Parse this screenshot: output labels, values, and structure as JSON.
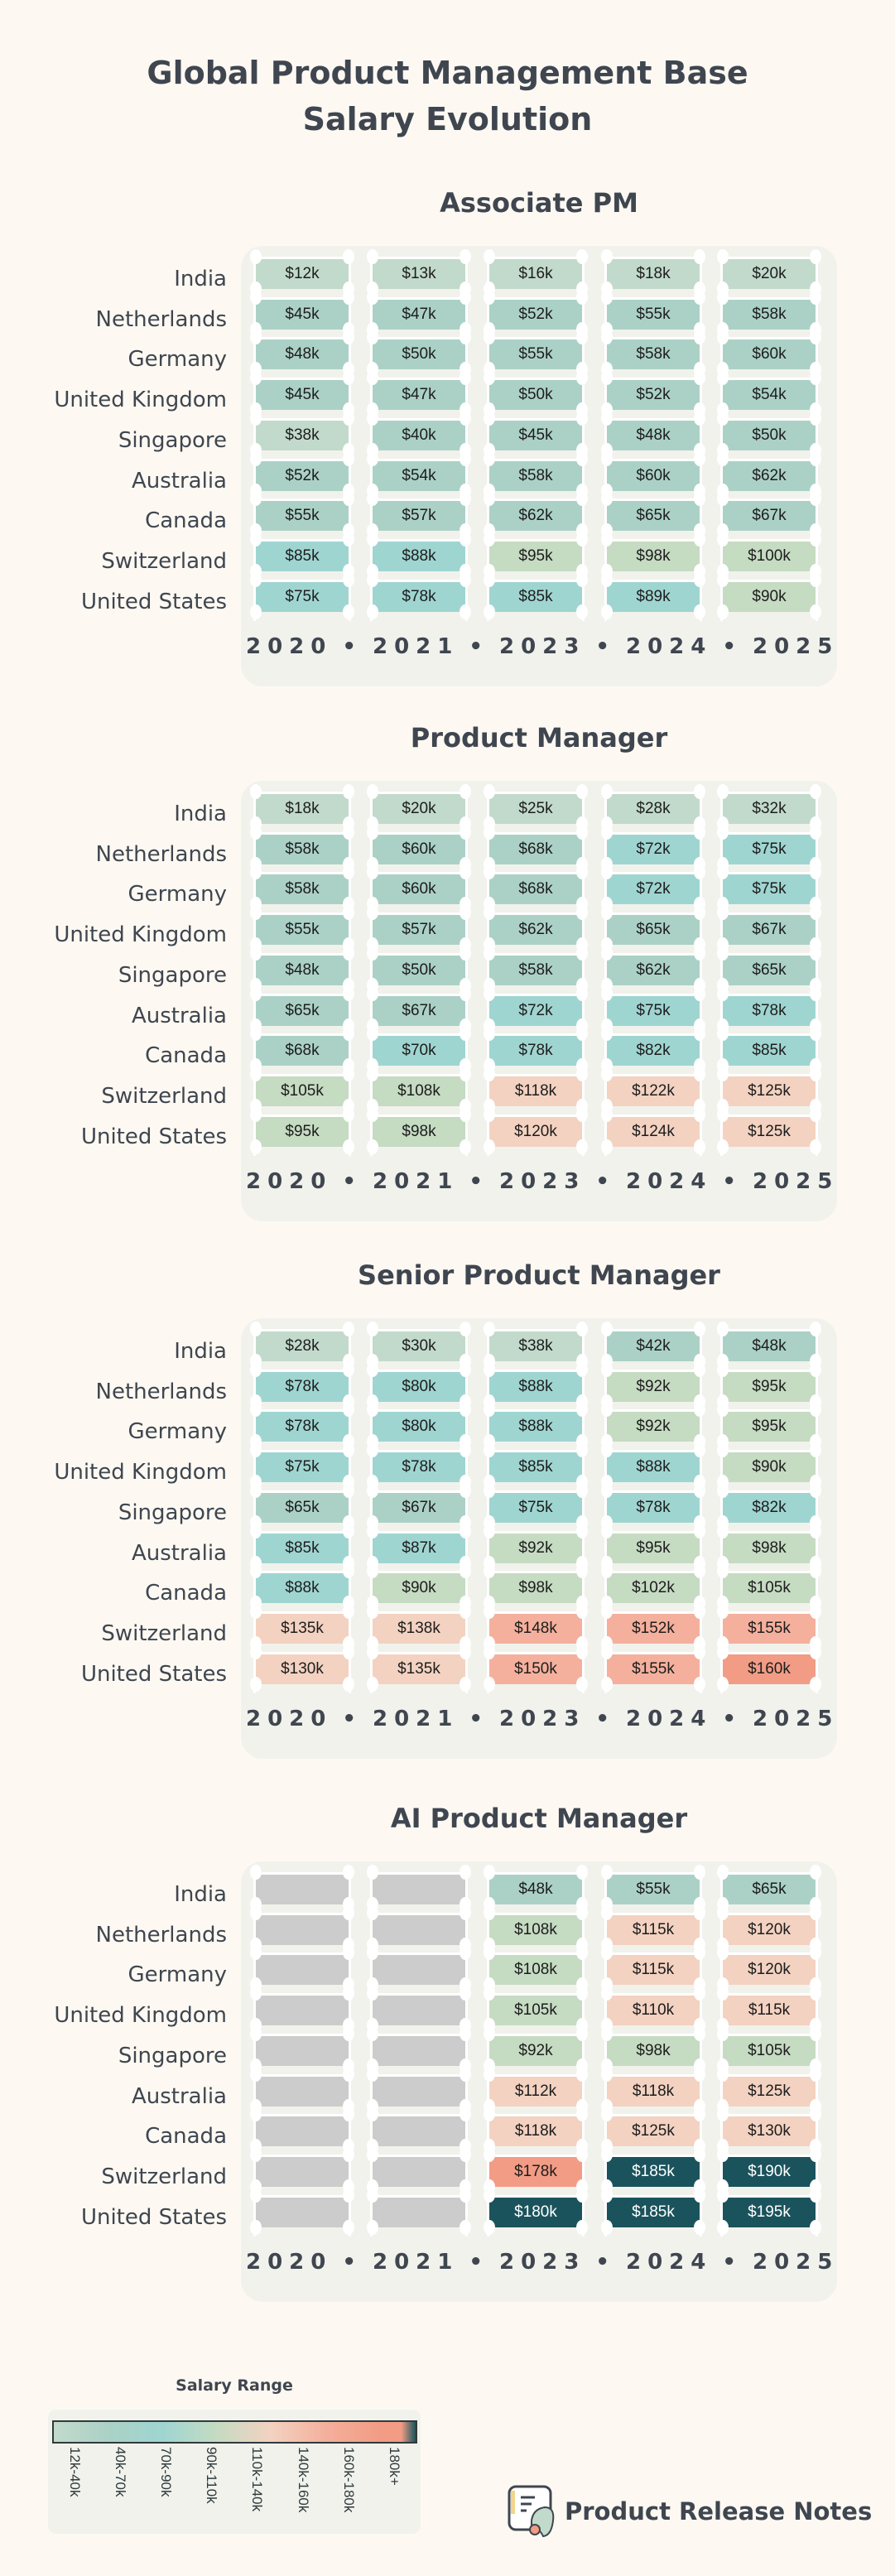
{
  "title_line1": "Global Product Management Base",
  "title_line2": "Salary Evolution",
  "chart_data": {
    "type": "heatmap",
    "title": "Global Product Management Base Salary Evolution",
    "years": [
      "2020",
      "2021",
      "2023",
      "2024",
      "2025"
    ],
    "year_separator": "•",
    "countries": [
      "India",
      "Netherlands",
      "Germany",
      "United Kingdom",
      "Singapore",
      "Australia",
      "Canada",
      "Switzerland",
      "United States"
    ],
    "unit": "$k",
    "sections": [
      {
        "title": "Associate PM",
        "values": [
          [
            12,
            13,
            16,
            18,
            20
          ],
          [
            45,
            47,
            52,
            55,
            58
          ],
          [
            48,
            50,
            55,
            58,
            60
          ],
          [
            45,
            47,
            50,
            52,
            54
          ],
          [
            38,
            40,
            45,
            48,
            50
          ],
          [
            52,
            54,
            58,
            60,
            62
          ],
          [
            55,
            57,
            62,
            65,
            67
          ],
          [
            85,
            88,
            95,
            98,
            100
          ],
          [
            75,
            78,
            85,
            89,
            90
          ]
        ]
      },
      {
        "title": "Product Manager",
        "values": [
          [
            18,
            20,
            25,
            28,
            32
          ],
          [
            58,
            60,
            68,
            72,
            75
          ],
          [
            58,
            60,
            68,
            72,
            75
          ],
          [
            55,
            57,
            62,
            65,
            67
          ],
          [
            48,
            50,
            58,
            62,
            65
          ],
          [
            65,
            67,
            72,
            75,
            78
          ],
          [
            68,
            70,
            78,
            82,
            85
          ],
          [
            105,
            108,
            118,
            122,
            125
          ],
          [
            95,
            98,
            120,
            124,
            125
          ]
        ]
      },
      {
        "title": "Senior Product Manager",
        "values": [
          [
            28,
            30,
            38,
            42,
            48
          ],
          [
            78,
            80,
            88,
            92,
            95
          ],
          [
            78,
            80,
            88,
            92,
            95
          ],
          [
            75,
            78,
            85,
            88,
            90
          ],
          [
            65,
            67,
            75,
            78,
            82
          ],
          [
            85,
            87,
            92,
            95,
            98
          ],
          [
            88,
            90,
            98,
            102,
            105
          ],
          [
            135,
            138,
            148,
            152,
            155
          ],
          [
            130,
            135,
            150,
            155,
            160
          ]
        ]
      },
      {
        "title": "AI Product Manager",
        "values": [
          [
            null,
            null,
            48,
            55,
            65
          ],
          [
            null,
            null,
            108,
            115,
            120
          ],
          [
            null,
            null,
            108,
            115,
            120
          ],
          [
            null,
            null,
            105,
            110,
            115
          ],
          [
            null,
            null,
            92,
            98,
            105
          ],
          [
            null,
            null,
            112,
            118,
            125
          ],
          [
            null,
            null,
            118,
            125,
            130
          ],
          [
            null,
            null,
            178,
            185,
            190
          ],
          [
            null,
            null,
            180,
            185,
            195
          ]
        ]
      }
    ],
    "legend": {
      "title": "Salary Range",
      "bins": [
        "12k-40k",
        "40k-70k",
        "70k-90k",
        "90k-110k",
        "110k-140k",
        "140k-160k",
        "160k-180k",
        "180k+"
      ],
      "lower_bounds": [
        12,
        40,
        70,
        90,
        110,
        140,
        160,
        180
      ],
      "colors": [
        "#c2dacb",
        "#abd1c6",
        "#9fd5d1",
        "#c5dbc2",
        "#f3d2c1",
        "#f4b09c",
        "#f29c85",
        "#1b535c"
      ],
      "missing_color": "#cccccc"
    }
  },
  "brand": {
    "name": "Product Release Notes"
  }
}
